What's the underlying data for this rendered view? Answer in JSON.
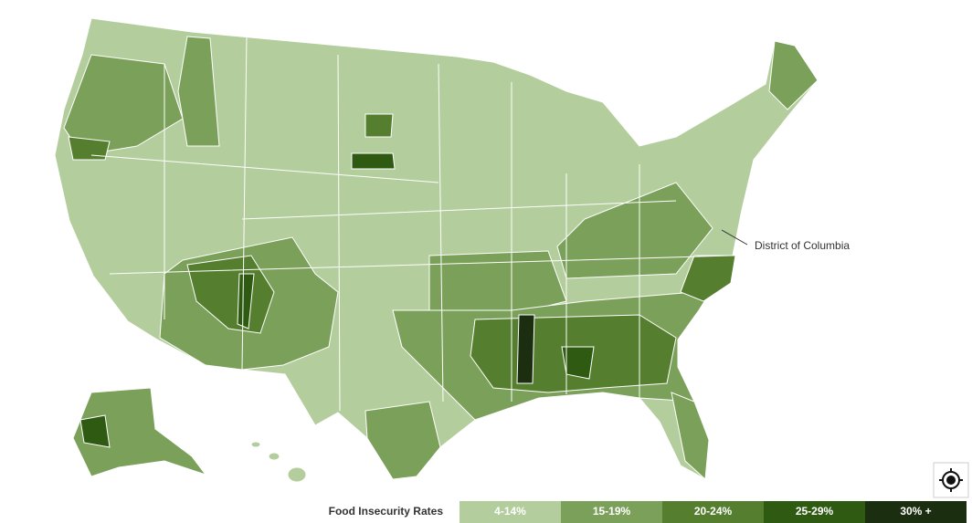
{
  "map": {
    "annotation": "District of Columbia",
    "legend": {
      "title": "Food Insecurity Rates",
      "items": [
        {
          "label": "4-14%",
          "color": "#b3cd9c"
        },
        {
          "label": "15-19%",
          "color": "#7ba05a"
        },
        {
          "label": "20-24%",
          "color": "#557f2f"
        },
        {
          "label": "25-29%",
          "color": "#2f5a12"
        },
        {
          "label": "30% +",
          "color": "#1b2e10"
        }
      ]
    }
  }
}
